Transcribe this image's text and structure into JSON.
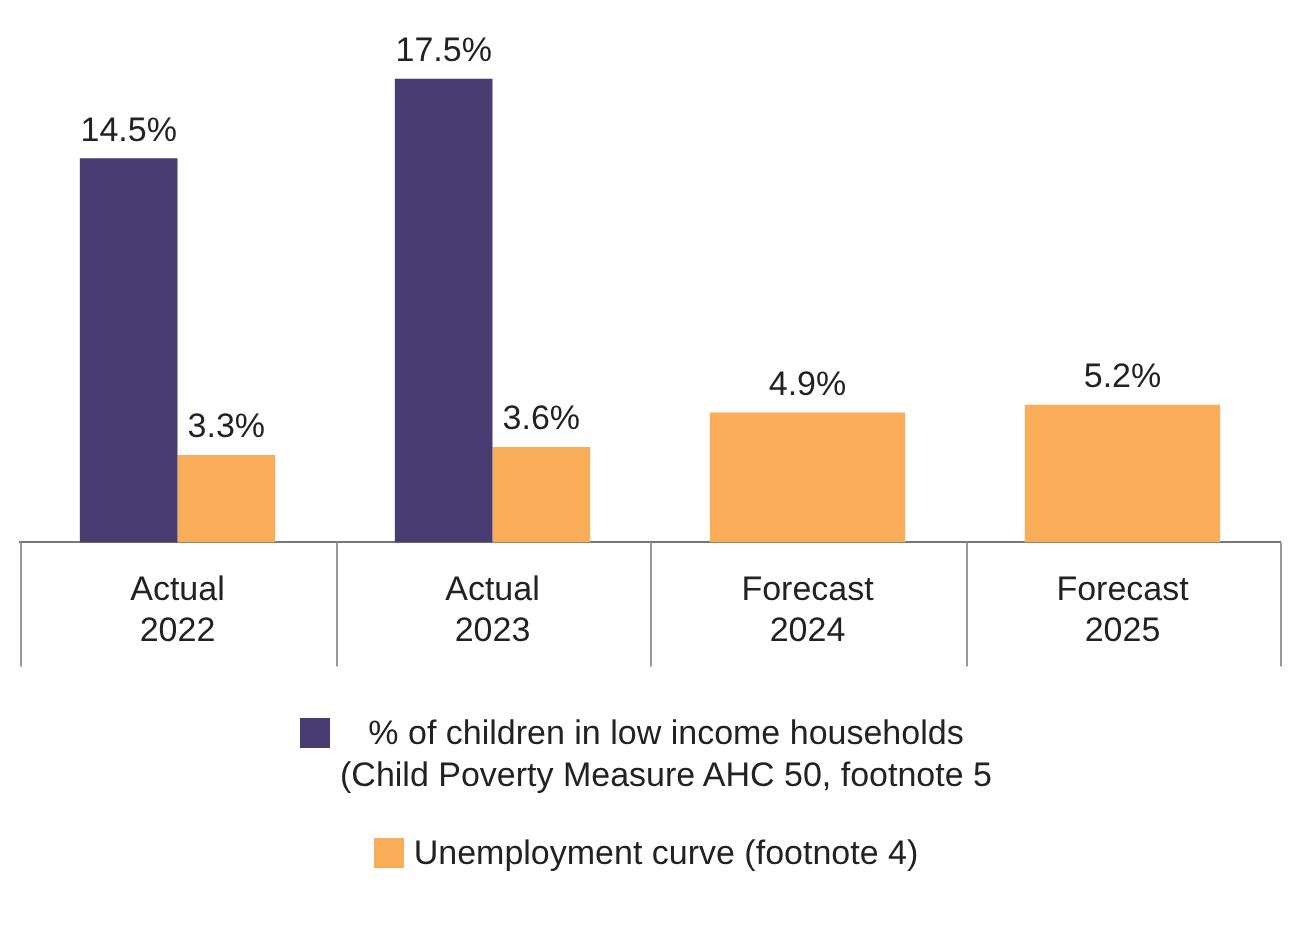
{
  "chart_data": {
    "type": "bar",
    "categories": [
      "Actual\n2022",
      "Actual\n2023",
      "Forecast\n2024",
      "Forecast\n2025"
    ],
    "series": [
      {
        "name": "% of children in low income households\n(Child Poverty Measure AHC 50, footnote 5",
        "color": "#483d73",
        "values": [
          14.5,
          17.5,
          null,
          null
        ],
        "value_labels": [
          "14.5%",
          "17.5%",
          null,
          null
        ]
      },
      {
        "name": "Unemployment curve (footnote 4)",
        "color": "#f9ad58",
        "values": [
          3.3,
          3.6,
          4.9,
          5.2
        ],
        "value_labels": [
          "3.3%",
          "3.6%",
          "4.9%",
          "5.2%"
        ]
      }
    ],
    "grid": false,
    "legend": "bottom"
  }
}
